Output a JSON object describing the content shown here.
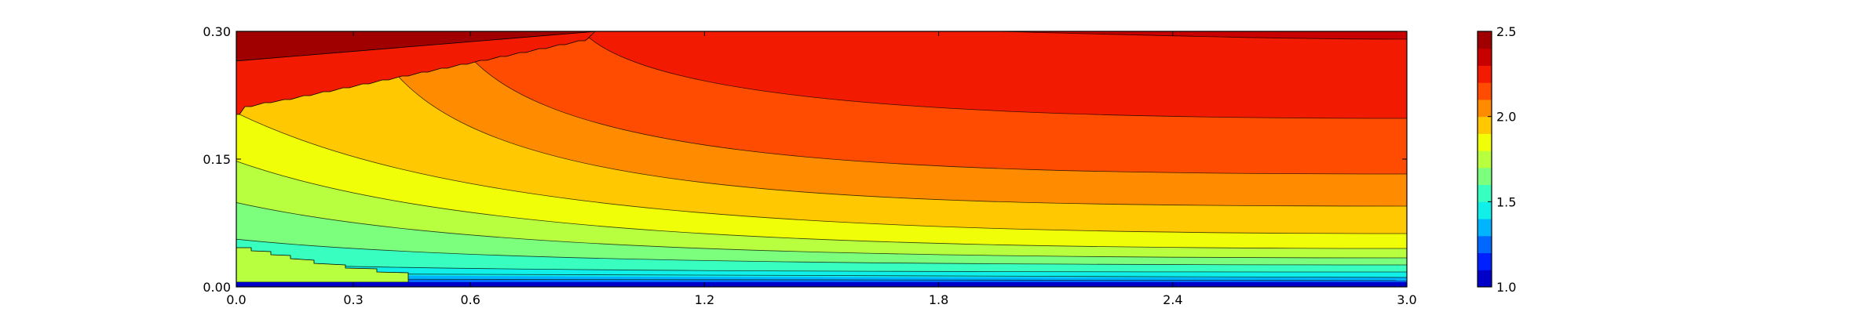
{
  "chart_data": {
    "type": "heatmap",
    "subtype": "filled-contour",
    "title": "",
    "xlabel": "",
    "ylabel": "",
    "xlim": [
      0.0,
      3.0
    ],
    "ylim": [
      0.0,
      0.3
    ],
    "x_ticks": [
      {
        "value": 0.0,
        "label": "0.0"
      },
      {
        "value": 0.3,
        "label": "0.3"
      },
      {
        "value": 0.6,
        "label": "0.6"
      },
      {
        "value": 1.2,
        "label": "1.2"
      },
      {
        "value": 1.8,
        "label": "1.8"
      },
      {
        "value": 2.4,
        "label": "2.4"
      },
      {
        "value": 3.0,
        "label": "3.0"
      }
    ],
    "y_ticks": [
      {
        "value": 0.0,
        "label": "0.00"
      },
      {
        "value": 0.15,
        "label": "0.15"
      },
      {
        "value": 0.3,
        "label": "0.30"
      }
    ],
    "colorbar": {
      "range": [
        1.0,
        2.5
      ],
      "colormap": "jet",
      "ticks": [
        {
          "value": 1.0,
          "label": "1.0"
        },
        {
          "value": 1.5,
          "label": "1.5"
        },
        {
          "value": 2.0,
          "label": "2.0"
        },
        {
          "value": 2.5,
          "label": "2.5"
        }
      ],
      "levels": [
        1.0,
        1.1,
        1.2,
        1.3,
        1.4,
        1.5,
        1.6,
        1.7,
        1.8,
        1.9,
        2.0,
        2.1,
        2.2,
        2.3,
        2.4,
        2.5
      ],
      "level_colors": [
        "#0000c8",
        "#0020ff",
        "#0068ff",
        "#00b4ff",
        "#10f0e8",
        "#38ffc0",
        "#7cff7c",
        "#b8ff40",
        "#f0ff08",
        "#ffc800",
        "#ff8c00",
        "#ff4c00",
        "#f21a00",
        "#c80000",
        "#a00000"
      ]
    },
    "grid": false,
    "legend": "none"
  }
}
